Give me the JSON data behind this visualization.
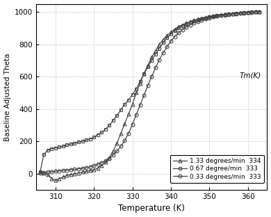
{
  "title": "",
  "xlabel": "Temperature (K)",
  "ylabel": "Baseline Adjusted Theta",
  "xlim": [
    305,
    365
  ],
  "ylim": [
    -100,
    1050
  ],
  "yticks": [
    0,
    200,
    400,
    600,
    800,
    1000
  ],
  "xticks": [
    310,
    320,
    330,
    340,
    350,
    360
  ],
  "grid_color": "#bbbbbb",
  "background_color": "#ffffff",
  "tm_label": "Tm(K)",
  "series": [
    {
      "label": "1.33 degrees/min",
      "tm": "334",
      "marker": "^",
      "color": "#444444",
      "x": [
        306,
        307,
        308,
        309,
        310,
        311,
        312,
        313,
        314,
        315,
        316,
        317,
        318,
        319,
        320,
        321,
        322,
        323,
        324,
        325,
        326,
        327,
        328,
        329,
        330,
        331,
        332,
        333,
        334,
        335,
        336,
        337,
        338,
        339,
        340,
        341,
        342,
        343,
        344,
        345,
        346,
        347,
        348,
        349,
        350,
        351,
        352,
        353,
        354,
        355,
        356,
        357,
        358,
        359,
        360,
        361,
        362,
        363
      ],
      "y": [
        10,
        5,
        -5,
        -30,
        -40,
        -30,
        -20,
        -10,
        -5,
        0,
        5,
        10,
        15,
        20,
        25,
        35,
        50,
        70,
        100,
        140,
        190,
        250,
        310,
        370,
        430,
        500,
        560,
        620,
        670,
        720,
        760,
        800,
        830,
        855,
        875,
        895,
        910,
        920,
        930,
        940,
        950,
        957,
        963,
        968,
        972,
        976,
        980,
        983,
        986,
        988,
        990,
        993,
        995,
        997,
        998,
        999,
        1000,
        1002
      ]
    },
    {
      "label": "0.67 degree/min",
      "tm": "333",
      "marker": "s",
      "color": "#444444",
      "x": [
        306,
        307,
        308,
        309,
        310,
        311,
        312,
        313,
        314,
        315,
        316,
        317,
        318,
        319,
        320,
        321,
        322,
        323,
        324,
        325,
        326,
        327,
        328,
        329,
        330,
        331,
        332,
        333,
        334,
        335,
        336,
        337,
        338,
        339,
        340,
        341,
        342,
        343,
        344,
        345,
        346,
        347,
        348,
        349,
        350,
        351,
        352,
        353,
        354,
        355,
        356,
        357,
        358,
        359,
        360,
        361,
        362,
        363
      ],
      "y": [
        10,
        120,
        145,
        155,
        160,
        165,
        170,
        178,
        183,
        188,
        195,
        200,
        208,
        215,
        225,
        240,
        255,
        275,
        300,
        330,
        360,
        395,
        430,
        455,
        490,
        525,
        570,
        620,
        660,
        700,
        740,
        775,
        810,
        840,
        865,
        885,
        903,
        916,
        926,
        936,
        944,
        951,
        958,
        964,
        969,
        974,
        978,
        981,
        984,
        987,
        990,
        992,
        994,
        996,
        998,
        999,
        1000,
        1002
      ]
    },
    {
      "label": "0.33 degrees/min",
      "tm": "333",
      "marker": "o",
      "color": "#444444",
      "x": [
        306,
        307,
        308,
        309,
        310,
        311,
        312,
        313,
        314,
        315,
        316,
        317,
        318,
        319,
        320,
        321,
        322,
        323,
        324,
        325,
        326,
        327,
        328,
        329,
        330,
        331,
        332,
        333,
        334,
        335,
        336,
        337,
        338,
        339,
        340,
        341,
        342,
        343,
        344,
        345,
        346,
        347,
        348,
        349,
        350,
        351,
        352,
        353,
        354,
        355,
        356,
        357,
        358,
        359,
        360,
        361,
        362,
        363
      ],
      "y": [
        5,
        8,
        10,
        12,
        15,
        18,
        20,
        22,
        25,
        27,
        30,
        33,
        37,
        42,
        50,
        58,
        68,
        80,
        95,
        115,
        140,
        170,
        205,
        250,
        305,
        365,
        425,
        485,
        545,
        600,
        655,
        705,
        748,
        785,
        820,
        848,
        870,
        890,
        906,
        920,
        932,
        941,
        950,
        957,
        963,
        969,
        974,
        978,
        981,
        985,
        988,
        990,
        992,
        994,
        996,
        998,
        999,
        1001
      ]
    }
  ]
}
